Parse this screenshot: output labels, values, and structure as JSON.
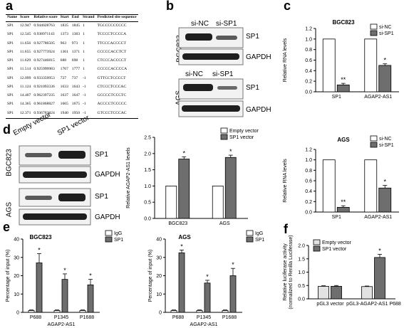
{
  "panels": {
    "a": "a",
    "b": "b",
    "c": "c",
    "d": "d",
    "e": "e",
    "f": "f"
  },
  "table": {
    "headers": [
      "Name",
      "Score",
      "Relative score",
      "Start",
      "End",
      "Strand",
      "Predicted site sequence"
    ],
    "rows": [
      [
        "SP1",
        "12.947",
        "0.944028763",
        "1835",
        "1845",
        "1",
        "TGCCCCCCCCC"
      ],
      [
        "SP1",
        "12.545",
        "0.938971143",
        "1373",
        "1383",
        "1",
        "TCCCCTCCCCA"
      ],
      [
        "SP1",
        "11.656",
        "0.927786505",
        "963",
        "973",
        "1",
        "TTCCCACCCCT"
      ],
      [
        "SP1",
        "11.655",
        "0.927773924",
        "1361",
        "1371",
        "1",
        "CCCCCACCTCT"
      ],
      [
        "SP1",
        "11.629",
        "0.927446815",
        "688",
        "698",
        "1",
        "CTCCCACCCCT"
      ],
      [
        "SP1",
        "11.514",
        "0.925999983",
        "1767",
        "1777",
        "1",
        "CCCCCACCCCA"
      ],
      [
        "SP1",
        "12.099",
        "0.933359953",
        "727",
        "737",
        "-1",
        "GTTCCTCCCCT"
      ],
      [
        "SP1",
        "11.124",
        "0.921093336",
        "1633",
        "1643",
        "-1",
        "CTCCCTCCCAC"
      ],
      [
        "SP1",
        "14.407",
        "0.962397235",
        "1637",
        "1647",
        "-1",
        "GCCCCTCCCTC"
      ],
      [
        "SP1",
        "14.365",
        "0.961868827",
        "1665",
        "1675",
        "-1",
        "ACCCCTCCCCC"
      ],
      [
        "SP1",
        "12.371",
        "0.936782024",
        "1940",
        "1950",
        "-1",
        "GTCCCTCCCAC"
      ]
    ]
  },
  "blot_b": {
    "lanes": [
      "si-NC",
      "si-SP1"
    ],
    "cells": [
      "BGC823",
      "AGS"
    ],
    "proteins": [
      "SP1",
      "GAPDH"
    ]
  },
  "blot_d": {
    "lanes": [
      "Empty vector",
      "SP1 vector"
    ],
    "cells": [
      "BGC823",
      "AGS"
    ],
    "proteins": [
      "SP1",
      "GAPDH"
    ]
  },
  "colors": {
    "white_bar": "#ffffff",
    "dark_bar": "#6e6e6e",
    "light_bar": "#d8d8d8",
    "band": "#1e1e1e"
  },
  "chart_data": [
    {
      "id": "c_top",
      "type": "bar",
      "title": "BGC823",
      "ylabel": "Relative RNA levels",
      "ylim": [
        0,
        1.2
      ],
      "yticks": [
        "0.0",
        "0.2",
        "0.4",
        "0.6",
        "0.8",
        "1.0",
        "1.2"
      ],
      "categories": [
        "SP1",
        "AGAP2-AS1"
      ],
      "series": [
        {
          "name": "si-NC",
          "values": [
            1.0,
            1.0
          ],
          "errors": [
            0,
            0
          ]
        },
        {
          "name": "si-SP1",
          "values": [
            0.13,
            0.5
          ],
          "errors": [
            0.03,
            0.03
          ]
        }
      ],
      "significance": [
        "**",
        "*"
      ],
      "legend": "top-right"
    },
    {
      "id": "c_bottom",
      "type": "bar",
      "title": "AGS",
      "ylabel": "Relative RNA levels",
      "ylim": [
        0,
        1.2
      ],
      "yticks": [
        "0.0",
        "0.2",
        "0.4",
        "0.6",
        "0.8",
        "1.0",
        "1.2"
      ],
      "categories": [
        "SP1",
        "AGAP2-AS1"
      ],
      "series": [
        {
          "name": "si-NC",
          "values": [
            1.0,
            1.0
          ],
          "errors": [
            0,
            0
          ]
        },
        {
          "name": "si-SP1",
          "values": [
            0.09,
            0.46
          ],
          "errors": [
            0.03,
            0.05
          ]
        }
      ],
      "significance": [
        "**",
        "*"
      ],
      "legend": "top-right"
    },
    {
      "id": "d_chart",
      "type": "bar",
      "title": "",
      "ylabel": "Relative AGAP2-AS1 levels",
      "ylim": [
        0,
        2.5
      ],
      "yticks": [
        "0.0",
        "0.5",
        "1.0",
        "1.5",
        "2.0",
        "2.5"
      ],
      "categories": [
        "BGC823",
        "AGS"
      ],
      "series": [
        {
          "name": "Empty vector",
          "values": [
            1.0,
            1.0
          ],
          "errors": [
            0,
            0
          ]
        },
        {
          "name": "SP1 vector",
          "values": [
            1.83,
            1.88
          ],
          "errors": [
            0.07,
            0.07
          ]
        }
      ],
      "significance": [
        "*",
        "*"
      ],
      "legend": "top-right"
    },
    {
      "id": "e_left",
      "type": "bar",
      "title": "BGC823",
      "ylabel": "Percentage of input (%)",
      "xlabel": "AGAP2-AS1",
      "ylim": [
        0,
        40
      ],
      "yticks": [
        "0",
        "10",
        "20",
        "30",
        "40"
      ],
      "categories": [
        "P688",
        "P1345",
        "P1688"
      ],
      "series": [
        {
          "name": "IgG",
          "values": [
            1.0,
            1.0,
            1.0
          ],
          "errors": [
            0.3,
            0.3,
            0.3
          ]
        },
        {
          "name": "SP1",
          "values": [
            27,
            18,
            15
          ],
          "errors": [
            5,
            3,
            3
          ]
        }
      ],
      "significance": [
        "*",
        "*",
        "*"
      ],
      "legend": "top-right"
    },
    {
      "id": "e_right",
      "type": "bar",
      "title": "AGS",
      "ylabel": "Percentage of input (%)",
      "xlabel": "AGAP2-AS1",
      "ylim": [
        0,
        40
      ],
      "yticks": [
        "0",
        "10",
        "20",
        "30",
        "40"
      ],
      "categories": [
        "P688",
        "P1345",
        "P1688"
      ],
      "series": [
        {
          "name": "IgG",
          "values": [
            1.0,
            1.0,
            1.0
          ],
          "errors": [
            0.3,
            0.3,
            0.3
          ]
        },
        {
          "name": "SP1",
          "values": [
            32.5,
            16,
            20
          ],
          "errors": [
            1.5,
            1.5,
            4
          ]
        }
      ],
      "significance": [
        "*",
        "*",
        "*"
      ],
      "legend": "top-right"
    },
    {
      "id": "f_chart",
      "type": "bar",
      "title": "",
      "ylabel": "Relative luciferase activity\n(normalized to Renilla Luciferase)",
      "ylim": [
        0,
        2.0
      ],
      "yticks": [
        "0.0",
        "0.5",
        "1.0",
        "1.5",
        "2.0"
      ],
      "categories": [
        "pGL3 vector",
        "pGL3-AGAP2-AS1 P688"
      ],
      "series": [
        {
          "name": "Empty vector",
          "values": [
            0.47,
            0.46
          ],
          "errors": [
            0.02,
            0.02
          ]
        },
        {
          "name": "SP1 vector",
          "values": [
            0.47,
            1.55
          ],
          "errors": [
            0.03,
            0.12
          ]
        }
      ],
      "significance": [
        "",
        "*"
      ],
      "legend": "top-left"
    }
  ]
}
